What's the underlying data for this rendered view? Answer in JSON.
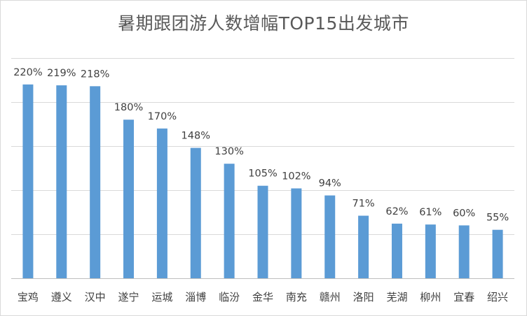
{
  "chart_data": {
    "type": "bar",
    "title": "暑期跟团游人数增幅TOP15出发城市",
    "xlabel": "",
    "ylabel": "",
    "ylim": [
      0,
      250
    ],
    "grid": true,
    "legend": "none",
    "categories": [
      "宝鸡",
      "遵义",
      "汉中",
      "遂宁",
      "运城",
      "淄博",
      "临汾",
      "金华",
      "南充",
      "赣州",
      "洛阳",
      "芜湖",
      "柳州",
      "宜春",
      "绍兴"
    ],
    "values": [
      220,
      219,
      218,
      180,
      170,
      148,
      130,
      105,
      102,
      94,
      71,
      62,
      61,
      60,
      55
    ],
    "value_labels": [
      "220%",
      "219%",
      "218%",
      "180%",
      "170%",
      "148%",
      "130%",
      "105%",
      "102%",
      "94%",
      "71%",
      "62%",
      "61%",
      "60%",
      "55%"
    ],
    "colors": {
      "bar": "#5b9bd5",
      "grid": "#d9d9d9",
      "axis": "#bfbfbf"
    }
  }
}
